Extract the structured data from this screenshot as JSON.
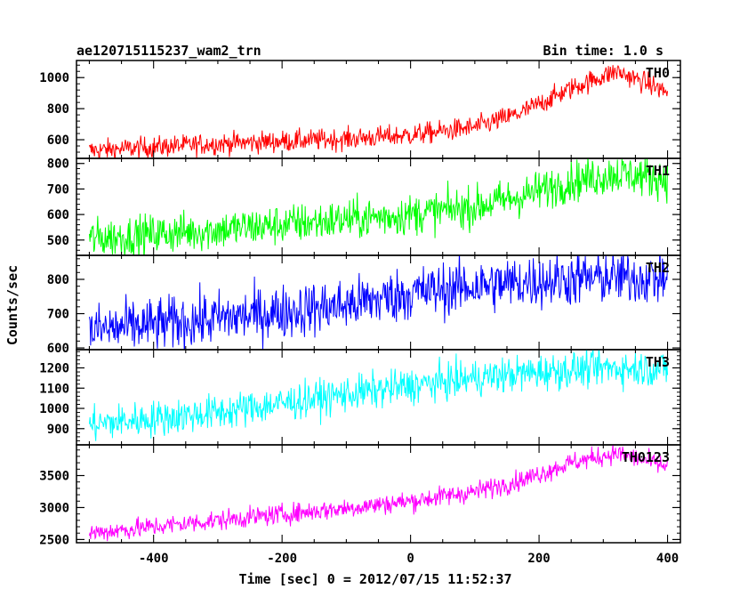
{
  "chart_data": {
    "type": "line",
    "title": "ae120715115237_wam2_trn",
    "bin_time_label": "Bin time: 1.0 s",
    "xlabel": "Time [sec] 0 = 2012/07/15 11:52:37",
    "ylabel": "Counts/sec",
    "xlim": [
      -520,
      420
    ],
    "x_ticks": [
      -400,
      -200,
      0,
      200,
      400
    ],
    "grid": false,
    "panels": [
      {
        "name": "TH0",
        "color": "#ff0000",
        "ylim": [
          480,
          1110
        ],
        "y_ticks": [
          600,
          800,
          1000
        ],
        "profile": [
          [
            -500,
            530
          ],
          [
            -300,
            575
          ],
          [
            -100,
            605
          ],
          [
            0,
            630
          ],
          [
            100,
            680
          ],
          [
            170,
            770
          ],
          [
            250,
            930
          ],
          [
            320,
            1040
          ],
          [
            370,
            960
          ],
          [
            400,
            905
          ]
        ],
        "noise": 35
      },
      {
        "name": "TH1",
        "color": "#00ff00",
        "ylim": [
          440,
          820
        ],
        "y_ticks": [
          500,
          600,
          700,
          800
        ],
        "profile": [
          [
            -500,
            505
          ],
          [
            -300,
            540
          ],
          [
            -100,
            580
          ],
          [
            0,
            600
          ],
          [
            100,
            630
          ],
          [
            170,
            670
          ],
          [
            250,
            730
          ],
          [
            320,
            760
          ],
          [
            400,
            740
          ]
        ],
        "noise": 40
      },
      {
        "name": "TH2",
        "color": "#0000ff",
        "ylim": [
          595,
          870
        ],
        "y_ticks": [
          600,
          700,
          800
        ],
        "profile": [
          [
            -500,
            650
          ],
          [
            -300,
            685
          ],
          [
            -100,
            725
          ],
          [
            0,
            760
          ],
          [
            100,
            780
          ],
          [
            200,
            795
          ],
          [
            300,
            805
          ],
          [
            400,
            805
          ]
        ],
        "noise": 40
      },
      {
        "name": "TH3",
        "color": "#00ffff",
        "ylim": [
          820,
          1290
        ],
        "y_ticks": [
          900,
          1000,
          1100,
          1200
        ],
        "profile": [
          [
            -500,
            920
          ],
          [
            -300,
            980
          ],
          [
            -100,
            1070
          ],
          [
            0,
            1110
          ],
          [
            100,
            1150
          ],
          [
            200,
            1180
          ],
          [
            300,
            1200
          ],
          [
            400,
            1195
          ]
        ],
        "noise": 45
      },
      {
        "name": "TH0123",
        "color": "#ff00ff",
        "ylim": [
          2450,
          3980
        ],
        "y_ticks": [
          2500,
          3000,
          3500
        ],
        "profile": [
          [
            -500,
            2600
          ],
          [
            -300,
            2800
          ],
          [
            -100,
            2990
          ],
          [
            0,
            3100
          ],
          [
            100,
            3250
          ],
          [
            170,
            3420
          ],
          [
            250,
            3700
          ],
          [
            320,
            3850
          ],
          [
            400,
            3640
          ]
        ],
        "noise": 80
      }
    ]
  }
}
